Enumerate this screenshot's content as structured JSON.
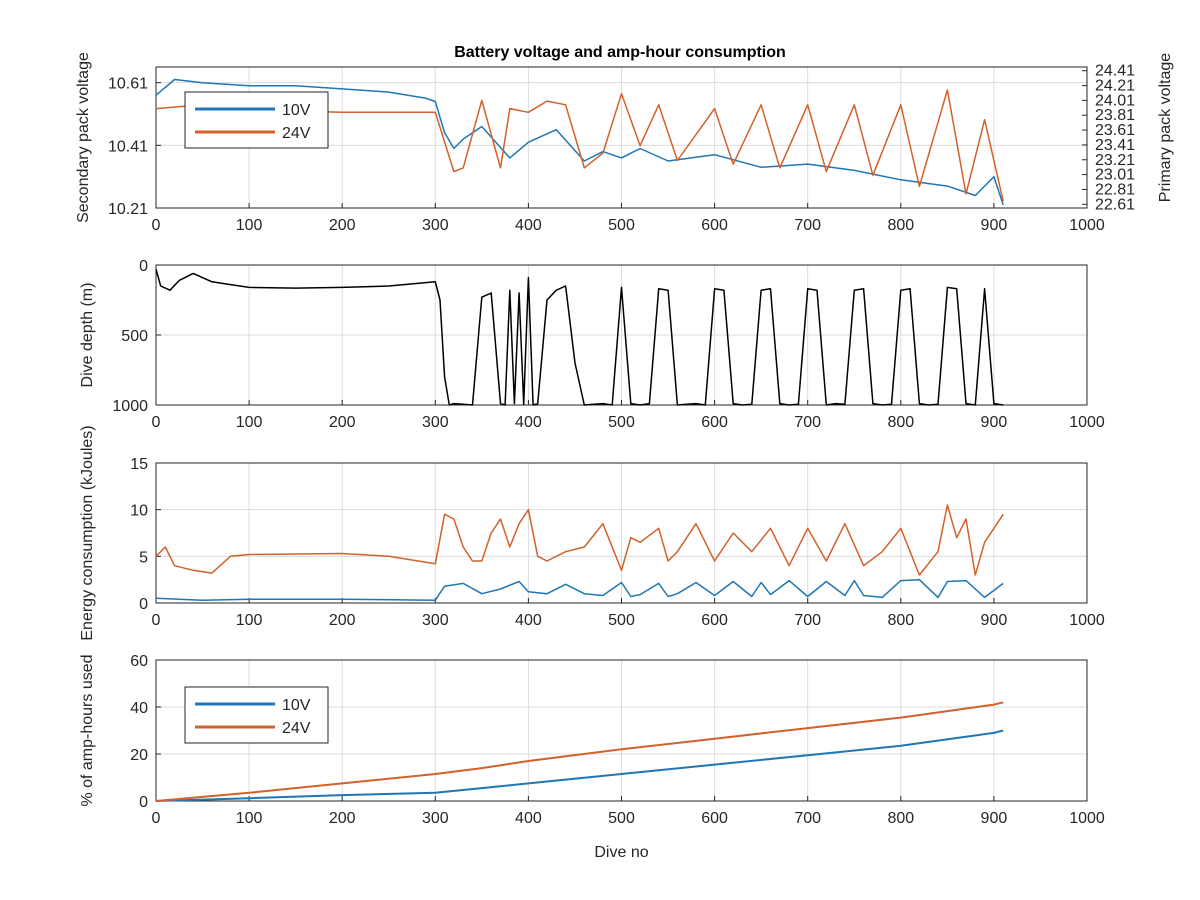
{
  "figure": {
    "title": "Battery voltage and amp-hour consumption",
    "colors": {
      "v10": "#1f77b4",
      "v24": "#d2612a",
      "depth": "#000000",
      "axis_left": "#1f77b4",
      "axis_right": "#d2612a"
    }
  },
  "chart_data": [
    {
      "id": "voltage",
      "type": "line",
      "title": "Battery voltage and amp-hour consumption",
      "ylabel": "Secondary pack voltage",
      "ylabel_right": "Primary pack voltage",
      "xlim": [
        0,
        1000
      ],
      "xticks": [
        "0",
        "100",
        "200",
        "300",
        "400",
        "500",
        "600",
        "700",
        "800",
        "900",
        "1000"
      ],
      "ylim": [
        10.21,
        10.66
      ],
      "yticks": [
        "10.21",
        "10.41",
        "10.61"
      ],
      "ylim_right": [
        22.56,
        24.46
      ],
      "yticks_right": [
        "22.61",
        "22.81",
        "23.01",
        "23.21",
        "23.41",
        "23.61",
        "23.81",
        "24.01",
        "24.21",
        "24.41"
      ],
      "grid": true,
      "legend": {
        "position": "top-left",
        "entries": [
          "10V",
          "24V"
        ]
      },
      "series": [
        {
          "name": "10V",
          "axis": "left",
          "x": [
            0,
            20,
            50,
            100,
            150,
            200,
            250,
            290,
            300,
            310,
            320,
            330,
            350,
            380,
            400,
            430,
            460,
            480,
            500,
            520,
            550,
            600,
            650,
            700,
            750,
            800,
            850,
            880,
            890,
            900,
            910
          ],
          "y": [
            10.57,
            10.62,
            10.61,
            10.6,
            10.6,
            10.59,
            10.58,
            10.56,
            10.55,
            10.45,
            10.4,
            10.43,
            10.47,
            10.37,
            10.42,
            10.46,
            10.36,
            10.39,
            10.37,
            10.4,
            10.36,
            10.38,
            10.34,
            10.35,
            10.33,
            10.3,
            10.28,
            10.25,
            10.28,
            10.31,
            10.22
          ]
        },
        {
          "name": "24V",
          "axis": "right",
          "x": [
            0,
            50,
            100,
            200,
            300,
            310,
            320,
            330,
            350,
            370,
            380,
            400,
            420,
            440,
            460,
            480,
            500,
            520,
            540,
            560,
            600,
            620,
            650,
            670,
            700,
            720,
            750,
            770,
            800,
            820,
            850,
            870,
            890,
            910
          ],
          "y": [
            23.9,
            23.95,
            23.88,
            23.85,
            23.85,
            23.45,
            23.05,
            23.1,
            24.01,
            23.1,
            23.9,
            23.85,
            24.0,
            23.95,
            23.1,
            23.3,
            24.1,
            23.4,
            23.95,
            23.2,
            23.9,
            23.15,
            23.95,
            23.1,
            23.95,
            23.05,
            23.95,
            23.0,
            23.95,
            22.85,
            24.15,
            22.75,
            23.75,
            22.65
          ]
        }
      ]
    },
    {
      "id": "depth",
      "type": "line",
      "ylabel": "Dive depth (m)",
      "xlim": [
        0,
        1000
      ],
      "xticks": [
        "0",
        "100",
        "200",
        "300",
        "400",
        "500",
        "600",
        "700",
        "800",
        "900",
        "1000"
      ],
      "ylim": [
        0,
        1000
      ],
      "yreverse": true,
      "yticks": [
        "0",
        "500",
        "1000"
      ],
      "grid": true,
      "series": [
        {
          "name": "",
          "x": [
            0,
            5,
            15,
            25,
            40,
            60,
            80,
            100,
            150,
            200,
            250,
            300,
            305,
            310,
            315,
            320,
            330,
            340,
            350,
            360,
            370,
            375,
            380,
            385,
            390,
            395,
            400,
            405,
            410,
            420,
            430,
            440,
            450,
            460,
            470,
            480,
            490,
            500,
            510,
            520,
            530,
            540,
            550,
            560,
            570,
            580,
            590,
            600,
            610,
            620,
            630,
            640,
            650,
            660,
            670,
            680,
            690,
            700,
            710,
            720,
            730,
            740,
            750,
            760,
            770,
            780,
            790,
            800,
            810,
            820,
            830,
            840,
            850,
            860,
            870,
            880,
            890,
            900,
            910
          ],
          "y": [
            30,
            150,
            180,
            110,
            60,
            120,
            140,
            160,
            165,
            160,
            150,
            120,
            250,
            800,
            1000,
            990,
            995,
            1000,
            230,
            200,
            990,
            1000,
            180,
            990,
            200,
            995,
            90,
            1000,
            990,
            250,
            180,
            150,
            700,
            1000,
            995,
            990,
            1000,
            160,
            990,
            1000,
            990,
            170,
            180,
            1000,
            995,
            990,
            1000,
            170,
            180,
            990,
            1000,
            995,
            180,
            170,
            990,
            1000,
            995,
            170,
            180,
            1000,
            990,
            995,
            180,
            170,
            990,
            1000,
            995,
            180,
            170,
            990,
            1000,
            995,
            160,
            170,
            990,
            1000,
            170,
            990,
            1000
          ]
        }
      ]
    },
    {
      "id": "energy",
      "type": "line",
      "ylabel": "Energy consumption (kJoules)",
      "xlim": [
        0,
        1000
      ],
      "xticks": [
        "0",
        "100",
        "200",
        "300",
        "400",
        "500",
        "600",
        "700",
        "800",
        "900",
        "1000"
      ],
      "ylim": [
        0,
        15
      ],
      "yticks": [
        "0",
        "5",
        "10",
        "15"
      ],
      "grid": true,
      "series": [
        {
          "name": "10V",
          "x": [
            0,
            50,
            100,
            200,
            300,
            310,
            330,
            350,
            370,
            390,
            400,
            420,
            440,
            460,
            480,
            500,
            510,
            520,
            540,
            550,
            560,
            580,
            600,
            620,
            640,
            650,
            660,
            680,
            700,
            720,
            740,
            750,
            760,
            780,
            800,
            820,
            840,
            850,
            870,
            890,
            910
          ],
          "y": [
            0.5,
            0.3,
            0.4,
            0.4,
            0.3,
            1.8,
            2.1,
            1.0,
            1.5,
            2.3,
            1.2,
            1.0,
            2.0,
            1.0,
            0.8,
            2.2,
            0.7,
            0.9,
            2.1,
            0.7,
            1.0,
            2.2,
            0.8,
            2.3,
            0.7,
            2.2,
            0.9,
            2.4,
            0.7,
            2.3,
            0.8,
            2.4,
            0.8,
            0.6,
            2.4,
            2.5,
            0.6,
            2.3,
            2.4,
            0.6,
            2.1
          ]
        },
        {
          "name": "24V",
          "x": [
            0,
            10,
            20,
            40,
            60,
            80,
            100,
            200,
            250,
            300,
            310,
            320,
            330,
            340,
            350,
            360,
            370,
            380,
            390,
            400,
            410,
            420,
            440,
            460,
            480,
            500,
            510,
            520,
            540,
            550,
            560,
            580,
            600,
            620,
            640,
            660,
            680,
            700,
            720,
            740,
            760,
            780,
            800,
            820,
            840,
            850,
            860,
            870,
            880,
            890,
            900,
            910
          ],
          "y": [
            5,
            6,
            4,
            3.5,
            3.2,
            5.0,
            5.2,
            5.3,
            5.0,
            4.2,
            9.5,
            9.0,
            6.0,
            4.5,
            4.5,
            7.5,
            9.0,
            6.0,
            8.5,
            10.0,
            5.0,
            4.5,
            5.5,
            6.0,
            8.5,
            3.5,
            7.0,
            6.5,
            8.0,
            4.5,
            5.5,
            8.5,
            4.5,
            7.5,
            5.5,
            8.0,
            4.0,
            8.0,
            4.5,
            8.5,
            4.0,
            5.5,
            8.0,
            3.0,
            5.5,
            10.5,
            7.0,
            9.0,
            3.0,
            6.5,
            8.0,
            9.5
          ]
        }
      ]
    },
    {
      "id": "amphours",
      "type": "line",
      "ylabel": "% of amp-hours used",
      "xlabel": "Dive no",
      "xlim": [
        0,
        1000
      ],
      "xticks": [
        "0",
        "100",
        "200",
        "300",
        "400",
        "500",
        "600",
        "700",
        "800",
        "900",
        "1000"
      ],
      "ylim": [
        0,
        60
      ],
      "yticks": [
        "0",
        "20",
        "40",
        "60"
      ],
      "grid": true,
      "legend": {
        "position": "top-left",
        "entries": [
          "10V",
          "24V"
        ]
      },
      "series": [
        {
          "name": "10V",
          "x": [
            0,
            100,
            200,
            300,
            350,
            400,
            500,
            600,
            700,
            800,
            900,
            910
          ],
          "y": [
            0,
            1.2,
            2.5,
            3.5,
            5.5,
            7.5,
            11.5,
            15.5,
            19.5,
            23.5,
            29,
            30
          ]
        },
        {
          "name": "24V",
          "x": [
            0,
            100,
            200,
            300,
            350,
            400,
            500,
            600,
            700,
            800,
            900,
            910
          ],
          "y": [
            0,
            3.5,
            7.5,
            11.5,
            14.0,
            17.0,
            22.0,
            26.5,
            31.0,
            35.5,
            41,
            42
          ]
        }
      ]
    }
  ]
}
